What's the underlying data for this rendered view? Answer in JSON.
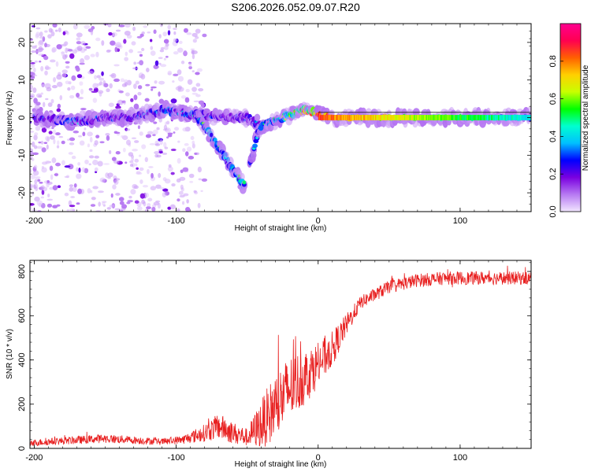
{
  "title": "S206.2026.052.09.07.R20",
  "chart_data": [
    {
      "type": "heatmap",
      "name": "spectrogram",
      "xlabel": "Height of straight line (km)",
      "ylabel": "Frequency (Hz)",
      "xlim": [
        -203,
        150
      ],
      "ylim": [
        -25,
        25
      ],
      "xticks": [
        -200,
        -100,
        0,
        100
      ],
      "yticks": [
        -20,
        -10,
        0,
        10,
        20
      ],
      "colorbar": {
        "label": "Normalized spectral amplitude",
        "range": [
          0,
          1
        ],
        "ticks": [
          0.0,
          0.2,
          0.4,
          0.6,
          0.8
        ],
        "tick_labels": [
          "0.0",
          "0.2",
          "0.4",
          "0.6",
          "0.8"
        ],
        "colors": [
          "#f2e6ff",
          "#b77af2",
          "#7a00e0",
          "#0000ff",
          "#00bfff",
          "#00ffd0",
          "#00ff00",
          "#c8ff00",
          "#ffd000",
          "#ff6000",
          "#ff0050",
          "#ff0090"
        ]
      },
      "features": [
        {
          "name": "scattered noise",
          "x_range": [
            -203,
            -100
          ],
          "y_range": [
            -25,
            25
          ],
          "amplitude": 0.05
        },
        {
          "name": "main band",
          "points": [
            [
              -200,
              0
            ],
            [
              -170,
              -1
            ],
            [
              -150,
              0
            ],
            [
              -130,
              0
            ],
            [
              -110,
              2
            ],
            [
              -90,
              1
            ],
            [
              -70,
              0
            ],
            [
              -50,
              0
            ],
            [
              -40,
              -2
            ],
            [
              -25,
              0
            ],
            [
              -10,
              2
            ],
            [
              0,
              1
            ],
            [
              10,
              0
            ],
            [
              150,
              0
            ]
          ],
          "amplitude": [
            0.2,
            0.3,
            0.2,
            0.2,
            0.3,
            0.3,
            0.2,
            0.2,
            0.3,
            0.4,
            0.6,
            0.85,
            0.8,
            0.4
          ]
        },
        {
          "name": "descending branch",
          "points": [
            [
              -85,
              0
            ],
            [
              -75,
              -5
            ],
            [
              -68,
              -9
            ],
            [
              -60,
              -14
            ],
            [
              -52,
              -18
            ]
          ],
          "amplitude": 0.35
        },
        {
          "name": "ascending branch",
          "points": [
            [
              -48,
              -12
            ],
            [
              -44,
              -6
            ],
            [
              -40,
              -2
            ]
          ],
          "amplitude": 0.3
        }
      ]
    },
    {
      "type": "line",
      "name": "snr",
      "xlabel": "Height of straight line (km)",
      "ylabel": "SNR (10 * v/v)",
      "xlim": [
        -203,
        150
      ],
      "ylim": [
        0,
        850
      ],
      "xticks": [
        -200,
        -100,
        0,
        100
      ],
      "yticks": [
        0,
        200,
        400,
        600,
        800
      ],
      "color": "#e82020",
      "trend": {
        "x": [
          -203,
          -150,
          -110,
          -95,
          -80,
          -70,
          -60,
          -50,
          -40,
          -30,
          -20,
          -10,
          0,
          10,
          20,
          30,
          50,
          70,
          90,
          110,
          150
        ],
        "y": [
          25,
          45,
          30,
          40,
          70,
          100,
          70,
          50,
          110,
          190,
          270,
          320,
          380,
          450,
          560,
          660,
          730,
          760,
          770,
          770,
          770
        ],
        "noise": [
          15,
          20,
          15,
          20,
          40,
          60,
          50,
          40,
          110,
          160,
          150,
          130,
          100,
          80,
          50,
          30,
          30,
          30,
          30,
          30,
          30
        ]
      }
    }
  ]
}
